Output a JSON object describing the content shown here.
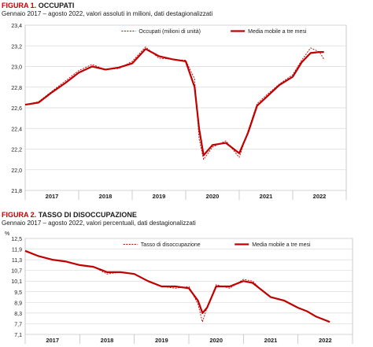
{
  "figure1": {
    "title_prefix": "FIGURA 1.",
    "title": "OCCUPATI",
    "subtitle": "Gennaio 2017 – agosto 2022, valori assoluti in milioni, dati destagionalizzati"
  },
  "figure2": {
    "title_prefix": "FIGURA 2.",
    "title": "TASSO DI DISOCCUPAZIONE",
    "subtitle": "Gennaio 2017 – agosto 2022, valori percentuali, dati destagionalizzati"
  },
  "colors": {
    "series": "#c00000",
    "grid": "#d9d9d9",
    "axis": "#595959",
    "text": "#1a1a1a"
  },
  "chart_data": [
    {
      "type": "line",
      "title": "OCCUPATI",
      "subtitle": "Gennaio 2017 – agosto 2022, valori assoluti in milioni, dati destagionalizzati",
      "ylabel": "",
      "ylim": [
        21.8,
        23.4
      ],
      "yticks": [
        "21,8",
        "22,0",
        "22,2",
        "22,4",
        "22,6",
        "22,8",
        "23,0",
        "23,2",
        "23,4"
      ],
      "ytick_values": [
        21.8,
        22.0,
        22.2,
        22.4,
        22.6,
        22.8,
        23.0,
        23.2,
        23.4
      ],
      "years": [
        "2017",
        "2018",
        "2019",
        "2020",
        "2021",
        "2022"
      ],
      "x": [
        "2017-01",
        "2017-04",
        "2017-07",
        "2017-10",
        "2018-01",
        "2018-04",
        "2018-07",
        "2018-10",
        "2019-01",
        "2019-04",
        "2019-07",
        "2019-10",
        "2020-01",
        "2020-03",
        "2020-04",
        "2020-05",
        "2020-07",
        "2020-10",
        "2021-01",
        "2021-03",
        "2021-05",
        "2021-07",
        "2021-10",
        "2022-01",
        "2022-03",
        "2022-05",
        "2022-07",
        "2022-08"
      ],
      "grid": true,
      "legend_position": "top",
      "series": [
        {
          "name": "Occupati (milioni di unità)",
          "style": "dashed",
          "values": [
            22.63,
            22.66,
            22.76,
            22.86,
            22.96,
            23.02,
            22.97,
            22.98,
            23.05,
            23.19,
            23.08,
            23.07,
            23.06,
            22.88,
            22.3,
            22.1,
            22.22,
            22.28,
            22.12,
            22.38,
            22.64,
            22.72,
            22.83,
            22.92,
            23.06,
            23.18,
            23.14,
            23.07
          ]
        },
        {
          "name": "Media mobile a tre mesi",
          "style": "solid",
          "values": [
            22.63,
            22.65,
            22.75,
            22.84,
            22.94,
            23.0,
            22.97,
            22.99,
            23.03,
            23.17,
            23.1,
            23.07,
            23.05,
            22.8,
            22.4,
            22.14,
            22.24,
            22.26,
            22.16,
            22.36,
            22.62,
            22.7,
            22.82,
            22.9,
            23.04,
            23.13,
            23.14,
            23.14
          ]
        }
      ]
    },
    {
      "type": "line",
      "title": "TASSO DI DISOCCUPAZIONE",
      "subtitle": "Gennaio 2017 – agosto 2022, valori percentuali, dati destagionalizzati",
      "ylabel": "%",
      "ylim": [
        7.1,
        12.5
      ],
      "yticks": [
        "7,1",
        "7,7",
        "8,3",
        "8,9",
        "9,5",
        "10,1",
        "10,7",
        "11,3",
        "11,9",
        "12,5"
      ],
      "ytick_values": [
        7.1,
        7.7,
        8.3,
        8.9,
        9.5,
        10.1,
        10.7,
        11.3,
        11.9,
        12.5
      ],
      "years": [
        "2017",
        "2018",
        "2019",
        "2020",
        "2021",
        "2022"
      ],
      "x": [
        "2017-01",
        "2017-04",
        "2017-07",
        "2017-10",
        "2018-01",
        "2018-04",
        "2018-07",
        "2018-10",
        "2019-01",
        "2019-04",
        "2019-07",
        "2019-10",
        "2020-01",
        "2020-03",
        "2020-04",
        "2020-05",
        "2020-07",
        "2020-10",
        "2021-01",
        "2021-03",
        "2021-05",
        "2021-07",
        "2021-10",
        "2022-01",
        "2022-03",
        "2022-05",
        "2022-07",
        "2022-08"
      ],
      "grid": true,
      "legend_position": "top",
      "series": [
        {
          "name": "Tasso di disoccupazione",
          "style": "dashed",
          "values": [
            11.8,
            11.5,
            11.3,
            11.2,
            11.0,
            10.9,
            10.5,
            10.6,
            10.5,
            10.1,
            9.8,
            9.7,
            9.8,
            8.8,
            7.8,
            8.6,
            9.9,
            9.7,
            10.2,
            10.1,
            9.6,
            9.2,
            9.0,
            8.6,
            8.4,
            8.1,
            7.9,
            7.8
          ]
        },
        {
          "name": "Media mobile a tre mesi",
          "style": "solid",
          "values": [
            11.8,
            11.5,
            11.3,
            11.2,
            11.0,
            10.9,
            10.6,
            10.6,
            10.5,
            10.1,
            9.8,
            9.8,
            9.7,
            9.0,
            8.3,
            8.6,
            9.8,
            9.8,
            10.1,
            10.0,
            9.6,
            9.2,
            9.0,
            8.6,
            8.4,
            8.1,
            7.9,
            7.8
          ]
        }
      ]
    }
  ]
}
